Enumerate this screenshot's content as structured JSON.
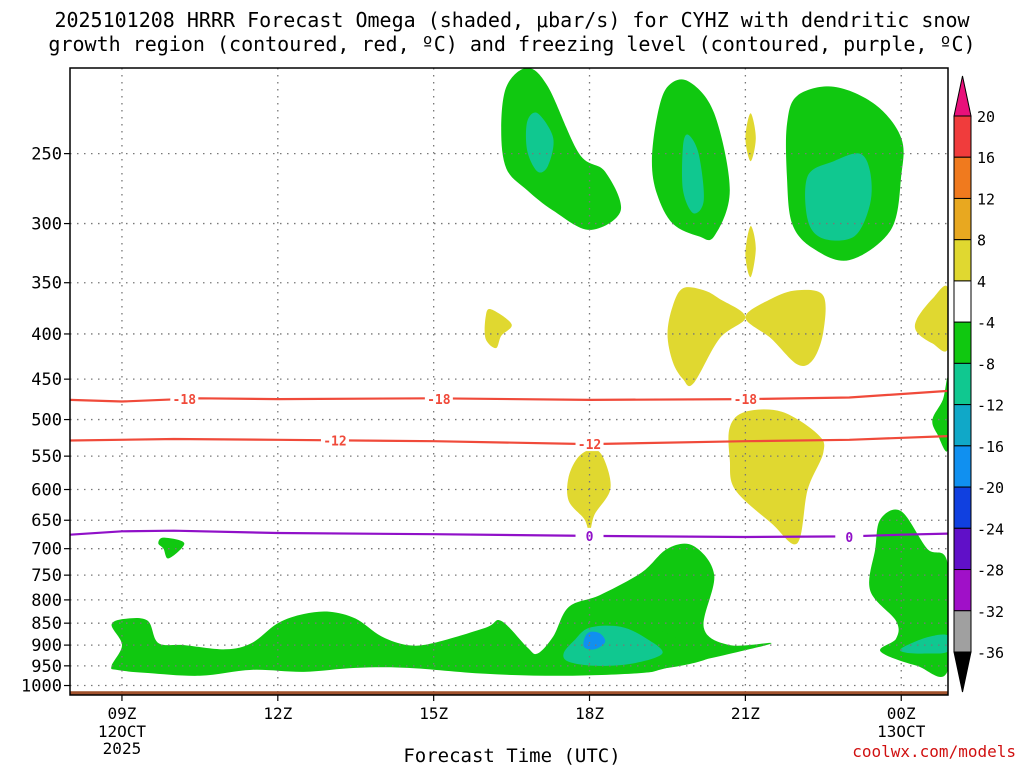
{
  "title": {
    "line1": "2025101208 HRRR Forecast Omega (shaded, μbar/s) for CYHZ with dendritic snow",
    "line2": "growth region (contoured, red, ºC) and freezing level (contoured, purple, ºC)"
  },
  "credit": "coolwx.com/models",
  "colors": {
    "green": "#10c810",
    "teal": "#10c890",
    "cyan": "#10a8c8",
    "blue": "#1090f0",
    "yellow": "#e0d830",
    "red_contour": "#f04a3a",
    "purple_contour": "#9010c8",
    "ground": "#a0522d"
  },
  "chart_data": {
    "type": "contour",
    "xlabel": "Forecast Time (UTC)",
    "ylabel": "",
    "x_range_hours": [
      8,
      24.9
    ],
    "y_axis": "pressure_hPa_log",
    "y_range": [
      1025,
      200
    ],
    "y_ticks": [
      250,
      300,
      350,
      400,
      450,
      500,
      550,
      600,
      650,
      700,
      750,
      800,
      850,
      900,
      950,
      1000
    ],
    "x_ticks": [
      {
        "hour": 9,
        "label": "09Z",
        "sub1": "12OCT",
        "sub2": "2025"
      },
      {
        "hour": 12,
        "label": "12Z",
        "sub1": "",
        "sub2": ""
      },
      {
        "hour": 15,
        "label": "15Z",
        "sub1": "",
        "sub2": ""
      },
      {
        "hour": 18,
        "label": "18Z",
        "sub1": "",
        "sub2": ""
      },
      {
        "hour": 21,
        "label": "21Z",
        "sub1": "",
        "sub2": ""
      },
      {
        "hour": 24,
        "label": "00Z",
        "sub1": "13OCT",
        "sub2": ""
      }
    ],
    "grid": true,
    "colorbar": {
      "labels": [
        "20",
        "16",
        "12",
        "8",
        "4",
        "-4",
        "-8",
        "-12",
        "-16",
        "-20",
        "-24",
        "-28",
        "-32",
        "-36"
      ],
      "colors": [
        "#e8107a",
        "#f03c3c",
        "#f07a1e",
        "#e8a820",
        "#e0d830",
        "#ffffff",
        "#10c810",
        "#10c890",
        "#10a8c8",
        "#1090f0",
        "#1040e0",
        "#6010c8",
        "#a010c8",
        "#a0a0a0",
        "#000000"
      ]
    },
    "contours": [
      {
        "name": "-18",
        "color": "red",
        "points": [
          [
            8,
            475
          ],
          [
            9,
            477
          ],
          [
            10.5,
            473
          ],
          [
            12,
            474
          ],
          [
            15,
            473
          ],
          [
            18,
            475
          ],
          [
            21,
            474
          ],
          [
            23,
            472
          ],
          [
            24.9,
            464
          ]
        ],
        "labels": [
          [
            10.2,
            474
          ],
          [
            15.1,
            474
          ],
          [
            21,
            474
          ]
        ]
      },
      {
        "name": "-12",
        "color": "red",
        "points": [
          [
            8,
            528
          ],
          [
            10,
            526
          ],
          [
            12,
            527
          ],
          [
            15,
            529
          ],
          [
            18,
            533
          ],
          [
            21,
            529
          ],
          [
            23,
            527
          ],
          [
            24.9,
            522
          ]
        ],
        "labels": [
          [
            13.1,
            528
          ],
          [
            18,
            533
          ]
        ]
      },
      {
        "name": "0",
        "color": "purple",
        "points": [
          [
            8,
            675
          ],
          [
            9,
            669
          ],
          [
            10,
            668
          ],
          [
            12,
            672
          ],
          [
            15,
            674
          ],
          [
            18,
            677
          ],
          [
            21,
            679
          ],
          [
            23,
            678
          ],
          [
            24,
            675
          ],
          [
            24.9,
            673
          ]
        ],
        "labels": [
          [
            18,
            677
          ],
          [
            23.0,
            679
          ]
        ]
      }
    ],
    "shaded_regions": [
      {
        "level": "-8",
        "points": [
          [
            8.8,
            853
          ],
          [
            9.1,
            840
          ],
          [
            9.5,
            845
          ],
          [
            9.7,
            895
          ],
          [
            10.2,
            900
          ],
          [
            11,
            910
          ],
          [
            11.5,
            895
          ],
          [
            12,
            850
          ],
          [
            12.5,
            830
          ],
          [
            13,
            825
          ],
          [
            13.5,
            840
          ],
          [
            14,
            880
          ],
          [
            14.5,
            900
          ],
          [
            15,
            895
          ],
          [
            16,
            860
          ],
          [
            16.3,
            845
          ],
          [
            16.8,
            905
          ],
          [
            17,
            920
          ],
          [
            17.3,
            880
          ],
          [
            17.6,
            815
          ],
          [
            18.2,
            790
          ],
          [
            19,
            745
          ],
          [
            19.5,
            700
          ],
          [
            20.0,
            695
          ],
          [
            20.4,
            750
          ],
          [
            20.2,
            860
          ],
          [
            20.7,
            900
          ],
          [
            21.5,
            895
          ],
          [
            20.9,
            915
          ],
          [
            19.5,
            955
          ],
          [
            19,
            968
          ],
          [
            17.5,
            975
          ],
          [
            16,
            970
          ],
          [
            14.5,
            955
          ],
          [
            13.5,
            955
          ],
          [
            12.5,
            965
          ],
          [
            11.5,
            960
          ],
          [
            10.5,
            975
          ],
          [
            9.5,
            968
          ],
          [
            8.9,
            960
          ],
          [
            8.8,
            950
          ],
          [
            9.0,
            900
          ]
        ]
      },
      {
        "level": "-8",
        "points": [
          [
            17.7,
            960
          ],
          [
            18.4,
            963
          ],
          [
            19.5,
            955
          ],
          [
            20.3,
            930
          ],
          [
            20.0,
            905
          ],
          [
            19.4,
            868
          ],
          [
            18.8,
            845
          ],
          [
            18.0,
            842
          ],
          [
            17.6,
            870
          ],
          [
            17.5,
            930
          ]
        ]
      },
      {
        "level": "-12",
        "points": [
          [
            17.6,
            940
          ],
          [
            18.1,
            950
          ],
          [
            18.8,
            945
          ],
          [
            19.4,
            920
          ],
          [
            19.1,
            885
          ],
          [
            18.6,
            858
          ],
          [
            18.0,
            860
          ],
          [
            17.7,
            890
          ],
          [
            17.5,
            920
          ]
        ]
      },
      {
        "level": "-16",
        "points": [
          [
            17.9,
            905
          ],
          [
            18.1,
            910
          ],
          [
            18.3,
            893
          ],
          [
            18.2,
            873
          ],
          [
            18.0,
            870
          ],
          [
            17.9,
            885
          ]
        ]
      },
      {
        "level": "-8",
        "points": [
          [
            9.8,
            680
          ],
          [
            10.2,
            690
          ],
          [
            9.9,
            718
          ],
          [
            9.8,
            700
          ],
          [
            9.7,
            690
          ]
        ]
      },
      {
        "level": "-8",
        "points": [
          [
            16.4,
            210
          ],
          [
            16.8,
            200
          ],
          [
            17.2,
            210
          ],
          [
            17.8,
            250
          ],
          [
            18.3,
            262
          ],
          [
            18.6,
            290
          ],
          [
            18.0,
            305
          ],
          [
            17.3,
            290
          ],
          [
            16.8,
            275
          ],
          [
            16.4,
            260
          ],
          [
            16.3,
            235
          ]
        ]
      },
      {
        "level": "-12",
        "points": [
          [
            16.8,
            230
          ],
          [
            17.0,
            225
          ],
          [
            17.3,
            240
          ],
          [
            17.2,
            258
          ],
          [
            17.0,
            262
          ],
          [
            16.8,
            248
          ]
        ]
      },
      {
        "level": "-8",
        "points": [
          [
            19.3,
            227
          ],
          [
            19.5,
            210
          ],
          [
            19.9,
            207
          ],
          [
            20.4,
            225
          ],
          [
            20.7,
            275
          ],
          [
            20.4,
            310
          ],
          [
            20.1,
            310
          ],
          [
            19.6,
            300
          ],
          [
            19.3,
            278
          ],
          [
            19.2,
            255
          ]
        ]
      },
      {
        "level": "-12",
        "points": [
          [
            19.8,
            245
          ],
          [
            19.9,
            238
          ],
          [
            20.1,
            250
          ],
          [
            20.2,
            282
          ],
          [
            20.0,
            292
          ],
          [
            19.8,
            275
          ]
        ]
      },
      {
        "level": "-8",
        "points": [
          [
            22.0,
            215
          ],
          [
            22.7,
            210
          ],
          [
            23.5,
            220
          ],
          [
            24.0,
            240
          ],
          [
            24.0,
            265
          ],
          [
            23.8,
            305
          ],
          [
            23.0,
            330
          ],
          [
            22.3,
            320
          ],
          [
            21.9,
            300
          ],
          [
            21.8,
            265
          ],
          [
            21.8,
            232
          ]
        ]
      },
      {
        "level": "-12",
        "points": [
          [
            22.2,
            265
          ],
          [
            22.7,
            255
          ],
          [
            23.2,
            250
          ],
          [
            23.4,
            262
          ],
          [
            23.4,
            285
          ],
          [
            23.1,
            310
          ],
          [
            22.5,
            312
          ],
          [
            22.2,
            297
          ]
        ]
      },
      {
        "level": "-8",
        "points": [
          [
            23.6,
            648
          ],
          [
            24.0,
            635
          ],
          [
            24.5,
            700
          ],
          [
            24.9,
            730
          ],
          [
            24.9,
            960
          ],
          [
            24.3,
            950
          ],
          [
            23.6,
            915
          ],
          [
            23.9,
            885
          ],
          [
            23.9,
            845
          ],
          [
            23.4,
            780
          ],
          [
            23.5,
            700
          ]
        ]
      },
      {
        "level": "-12",
        "points": [
          [
            24.0,
            908
          ],
          [
            24.5,
            882
          ],
          [
            24.9,
            878
          ],
          [
            24.9,
            915
          ],
          [
            24.5,
            920
          ],
          [
            24.1,
            918
          ]
        ]
      },
      {
        "level": "-8",
        "points": [
          [
            24.9,
            450
          ],
          [
            24.9,
            540
          ],
          [
            24.7,
            520
          ],
          [
            24.6,
            500
          ],
          [
            24.8,
            475
          ]
        ]
      },
      {
        "level": "4",
        "points": [
          [
            16.0,
            383
          ],
          [
            16.1,
            375
          ],
          [
            16.5,
            390
          ],
          [
            16.3,
            402
          ],
          [
            16.2,
            415
          ],
          [
            16.0,
            405
          ]
        ]
      },
      {
        "level": "4",
        "points": [
          [
            19.6,
            372
          ],
          [
            19.8,
            355
          ],
          [
            20.2,
            357
          ],
          [
            20.5,
            365
          ],
          [
            21.0,
            383
          ],
          [
            20.5,
            405
          ],
          [
            20.0,
            455
          ],
          [
            19.8,
            450
          ],
          [
            19.6,
            430
          ],
          [
            19.5,
            400
          ]
        ]
      },
      {
        "level": "4",
        "points": [
          [
            21.0,
            383
          ],
          [
            21.5,
            365
          ],
          [
            22.0,
            357
          ],
          [
            22.5,
            362
          ],
          [
            22.5,
            398
          ],
          [
            22.3,
            428
          ],
          [
            22.0,
            433
          ],
          [
            21.5,
            405
          ]
        ]
      },
      {
        "level": "4",
        "points": [
          [
            24.3,
            385
          ],
          [
            24.6,
            365
          ],
          [
            24.9,
            355
          ],
          [
            24.9,
            415
          ],
          [
            24.6,
            410
          ],
          [
            24.3,
            398
          ]
        ]
      },
      {
        "level": "4",
        "points": [
          [
            17.6,
            580
          ],
          [
            17.8,
            550
          ],
          [
            18.1,
            540
          ],
          [
            18.3,
            558
          ],
          [
            18.4,
            600
          ],
          [
            18.1,
            640
          ],
          [
            18.0,
            670
          ],
          [
            17.9,
            648
          ],
          [
            17.6,
            618
          ]
        ]
      },
      {
        "level": "4",
        "points": [
          [
            20.7,
            510
          ],
          [
            21.0,
            490
          ],
          [
            21.7,
            490
          ],
          [
            22.4,
            520
          ],
          [
            22.5,
            545
          ],
          [
            22.2,
            600
          ],
          [
            22.0,
            690
          ],
          [
            21.5,
            655
          ],
          [
            20.8,
            600
          ],
          [
            20.7,
            555
          ]
        ]
      },
      {
        "level": "4",
        "points": [
          [
            21.0,
            325
          ],
          [
            21.1,
            302
          ],
          [
            21.2,
            320
          ],
          [
            21.1,
            345
          ]
        ]
      },
      {
        "level": "4",
        "points": [
          [
            21.0,
            240
          ],
          [
            21.1,
            225
          ],
          [
            21.2,
            240
          ],
          [
            21.1,
            255
          ]
        ]
      }
    ]
  }
}
